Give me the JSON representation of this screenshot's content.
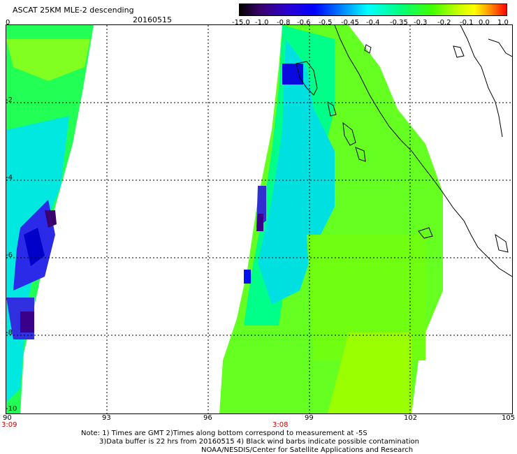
{
  "title": "ASCAT 25KM MLE-2 descending",
  "date": "20160515",
  "colorbar": {
    "labels": [
      "-15.0",
      "-1.0",
      "-0.8",
      "-0.6",
      "-0.5",
      "-0.45",
      "-0.4",
      "-0.35",
      "-0.3",
      "-0.2",
      "-0.1",
      "0.0",
      "1.0"
    ],
    "colors": [
      "#000000",
      "#3a006e",
      "#3a00c8",
      "#0000ff",
      "#0070ff",
      "#00c8ff",
      "#00ffff",
      "#00ff96",
      "#32ff00",
      "#96ff00",
      "#ffff00",
      "#ff9600",
      "#ff0000"
    ]
  },
  "map": {
    "y_ticks": [
      "0",
      "-2",
      "-4",
      "-6",
      "-8",
      "-10"
    ],
    "x_ticks": [
      "90",
      "93",
      "96",
      "99",
      "102",
      "105"
    ],
    "pass_times": [
      "3:09",
      "3:08"
    ]
  },
  "notes": [
    "Note: 1) Times are GMT 2)Times along bottom correspond to measurement at -5S",
    "3)Data buffer is 22 hrs from 20160515 4) Black wind barbs indicate possible contamination",
    "NOAA/NESDIS/Center for Satellite Applications and Research"
  ]
}
